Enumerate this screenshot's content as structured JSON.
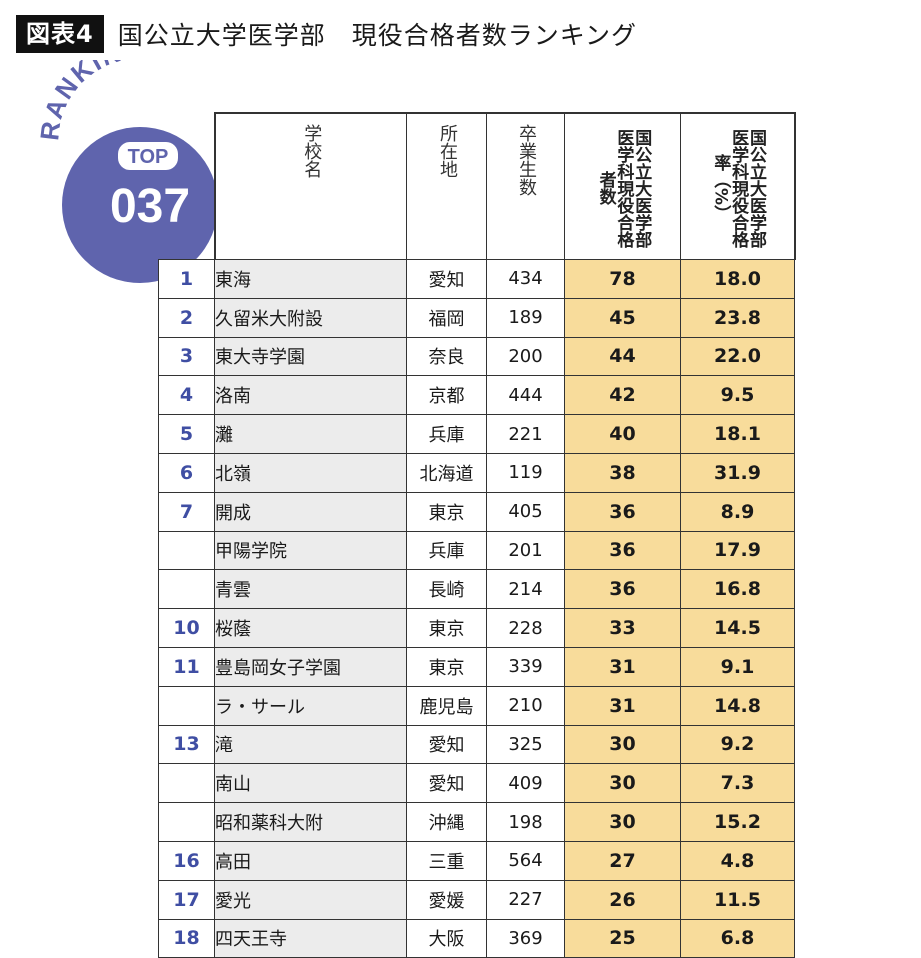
{
  "header": {
    "figure_label": "図表4",
    "title": "国公立大学医学部　現役合格者数ランキング"
  },
  "badge": {
    "arc_text": "RANKING",
    "top_label": "TOP",
    "number": "037",
    "circle_color": "#5f64ad"
  },
  "table": {
    "columns": {
      "school": "学校名",
      "location": "所在地",
      "graduates": "卒業生数",
      "passers": "国公立大医学部医学科現役合格者数",
      "rate": "国公立大医学部医学科現役合格率（%）"
    },
    "highlight_color": "#f8dc9b",
    "rank_color": "#3f4ea3",
    "rows": [
      {
        "rank": "1",
        "school": "東海",
        "location": "愛知",
        "graduates": "434",
        "passers": "78",
        "rate": "18.0"
      },
      {
        "rank": "2",
        "school": "久留米大附設",
        "location": "福岡",
        "graduates": "189",
        "passers": "45",
        "rate": "23.8"
      },
      {
        "rank": "3",
        "school": "東大寺学園",
        "location": "奈良",
        "graduates": "200",
        "passers": "44",
        "rate": "22.0"
      },
      {
        "rank": "4",
        "school": "洛南",
        "location": "京都",
        "graduates": "444",
        "passers": "42",
        "rate": "9.5"
      },
      {
        "rank": "5",
        "school": "灘",
        "location": "兵庫",
        "graduates": "221",
        "passers": "40",
        "rate": "18.1"
      },
      {
        "rank": "6",
        "school": "北嶺",
        "location": "北海道",
        "graduates": "119",
        "passers": "38",
        "rate": "31.9"
      },
      {
        "rank": "7",
        "school": "開成",
        "location": "東京",
        "graduates": "405",
        "passers": "36",
        "rate": "8.9"
      },
      {
        "rank": "",
        "school": "甲陽学院",
        "location": "兵庫",
        "graduates": "201",
        "passers": "36",
        "rate": "17.9"
      },
      {
        "rank": "",
        "school": "青雲",
        "location": "長崎",
        "graduates": "214",
        "passers": "36",
        "rate": "16.8"
      },
      {
        "rank": "10",
        "school": "桜蔭",
        "location": "東京",
        "graduates": "228",
        "passers": "33",
        "rate": "14.5"
      },
      {
        "rank": "11",
        "school": "豊島岡女子学園",
        "location": "東京",
        "graduates": "339",
        "passers": "31",
        "rate": "9.1"
      },
      {
        "rank": "",
        "school": "ラ・サール",
        "location": "鹿児島",
        "graduates": "210",
        "passers": "31",
        "rate": "14.8"
      },
      {
        "rank": "13",
        "school": "滝",
        "location": "愛知",
        "graduates": "325",
        "passers": "30",
        "rate": "9.2"
      },
      {
        "rank": "",
        "school": "南山",
        "location": "愛知",
        "graduates": "409",
        "passers": "30",
        "rate": "7.3"
      },
      {
        "rank": "",
        "school": "昭和薬科大附",
        "location": "沖縄",
        "graduates": "198",
        "passers": "30",
        "rate": "15.2"
      },
      {
        "rank": "16",
        "school": "高田",
        "location": "三重",
        "graduates": "564",
        "passers": "27",
        "rate": "4.8"
      },
      {
        "rank": "17",
        "school": "愛光",
        "location": "愛媛",
        "graduates": "227",
        "passers": "26",
        "rate": "11.5"
      },
      {
        "rank": "18",
        "school": "四天王寺",
        "location": "大阪",
        "graduates": "369",
        "passers": "25",
        "rate": "6.8"
      }
    ]
  }
}
